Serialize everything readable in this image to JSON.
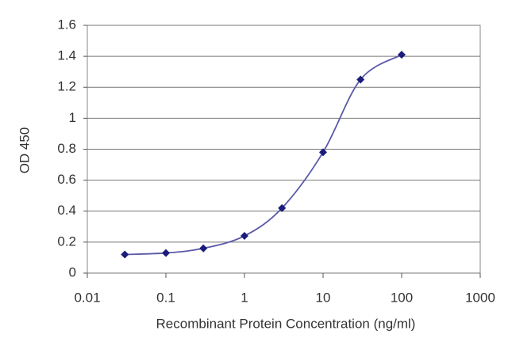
{
  "chart_data": {
    "type": "line",
    "xlabel": "Recombinant Protein Concentration (ng/ml)",
    "ylabel": "OD 450",
    "x": [
      0.03,
      0.1,
      0.3,
      1,
      3,
      10,
      30,
      100
    ],
    "values": [
      0.12,
      0.13,
      0.16,
      0.24,
      0.42,
      0.78,
      1.25,
      1.41
    ],
    "xscale": "log",
    "xlim": [
      0.01,
      1000
    ],
    "xticks": [
      0.01,
      0.1,
      1,
      10,
      100,
      1000
    ],
    "ylim": [
      0,
      1.6
    ],
    "yticks": [
      0,
      0.2,
      0.4,
      0.6,
      0.8,
      1,
      1.2,
      1.4,
      1.6
    ],
    "grid": true,
    "color": "#5a5aa8",
    "marker_color": "#1c1c7a"
  }
}
